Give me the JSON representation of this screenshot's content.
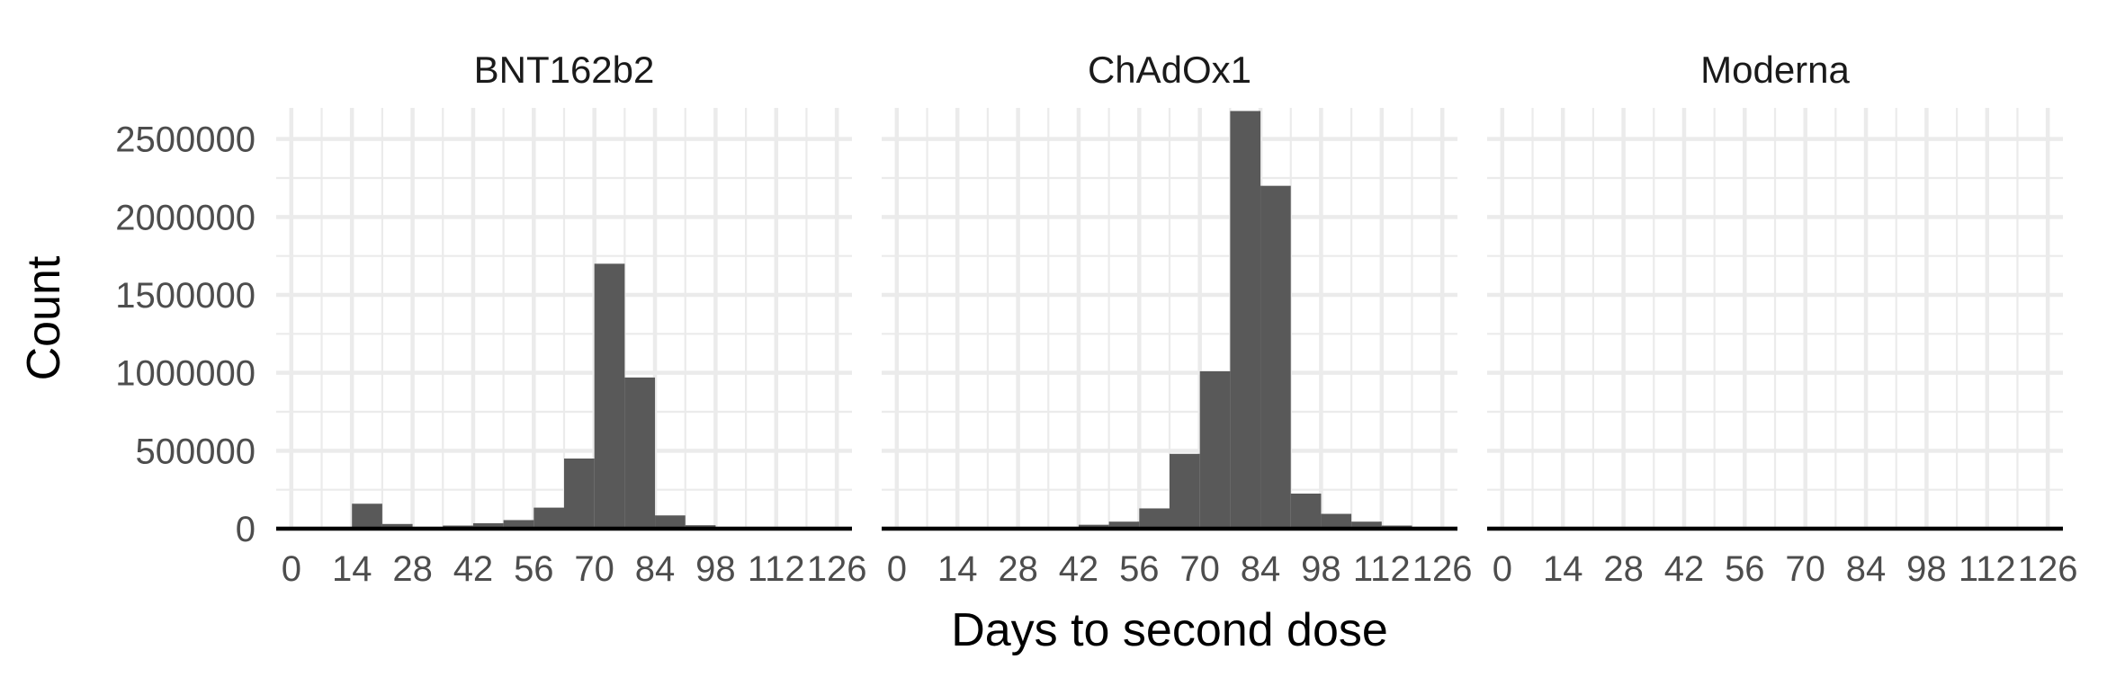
{
  "chart_data": {
    "type": "bar",
    "subtype": "histogram-facets",
    "xlabel": "Days to second dose",
    "ylabel": "Count",
    "grid": true,
    "bar_color": "#595959",
    "grid_color": "#ebebeb",
    "xlim": [
      -3.5,
      129.5
    ],
    "ylim": [
      0,
      2700000
    ],
    "bin_width": 7,
    "x_ticks": [
      0,
      14,
      28,
      42,
      56,
      70,
      84,
      98,
      112,
      126
    ],
    "x_tick_labels": [
      "0",
      "14",
      "28",
      "42",
      "56",
      "70",
      "84",
      "98",
      "112",
      "126"
    ],
    "y_ticks": [
      0,
      500000,
      1000000,
      1500000,
      2000000,
      2500000
    ],
    "y_tick_labels": [
      "0",
      "500000",
      "1000000",
      "1500000",
      "2000000",
      "2500000"
    ],
    "bin_starts": [
      0,
      7,
      14,
      21,
      28,
      35,
      42,
      49,
      56,
      63,
      70,
      77,
      84,
      91,
      98,
      105,
      112,
      119
    ],
    "panels": [
      {
        "title": "BNT162b2",
        "values": [
          0,
          0,
          160000,
          30000,
          10000,
          20000,
          35000,
          55000,
          135000,
          450000,
          1700000,
          970000,
          85000,
          22000,
          10000,
          5000,
          3000,
          2000
        ]
      },
      {
        "title": "ChAdOx1",
        "values": [
          0,
          0,
          0,
          0,
          0,
          5000,
          25000,
          45000,
          130000,
          480000,
          1010000,
          2680000,
          2200000,
          225000,
          95000,
          45000,
          20000,
          5000
        ]
      },
      {
        "title": "Moderna",
        "values": [
          0,
          0,
          0,
          0,
          0,
          0,
          0,
          0,
          0,
          0,
          0,
          0,
          0,
          0,
          0,
          0,
          0,
          0
        ]
      }
    ]
  }
}
